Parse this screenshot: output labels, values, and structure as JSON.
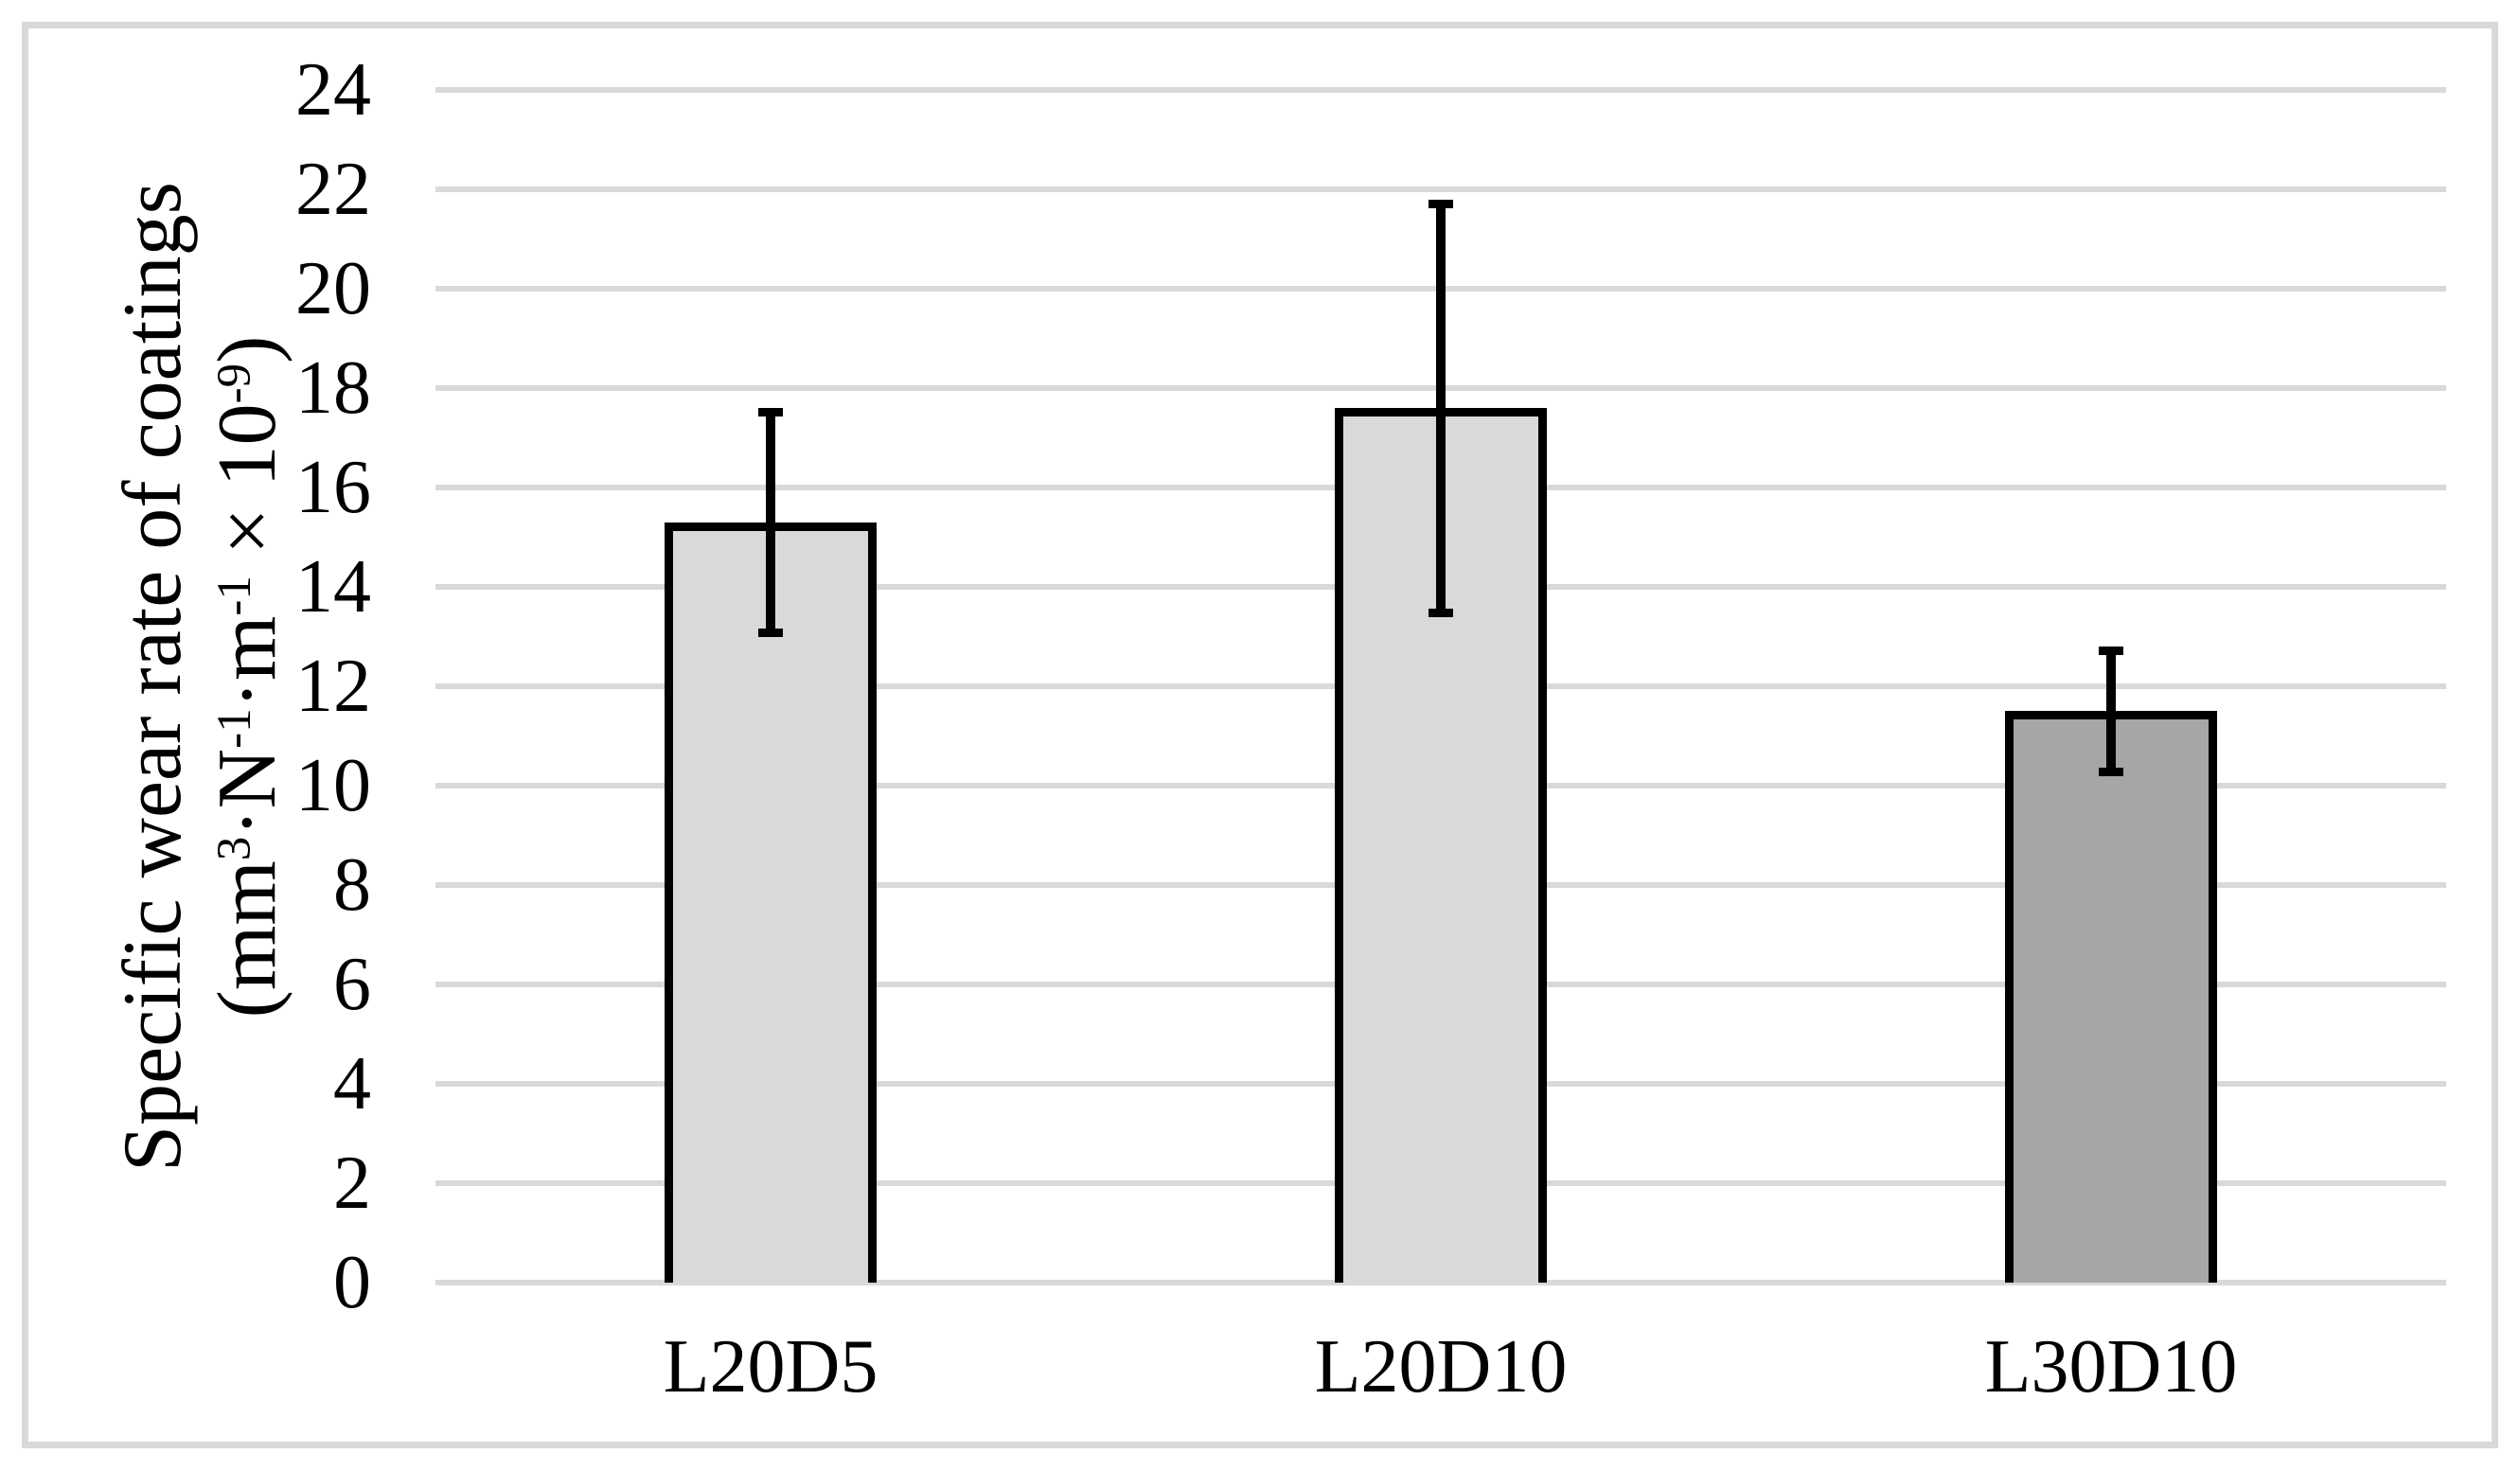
{
  "figure": {
    "background": "#ffffff",
    "border_color": "#d9d9d9"
  },
  "chart_data": {
    "type": "bar",
    "title": "",
    "xlabel": "",
    "ylabel_line1": "Specific wear rate of coatings",
    "ylabel_line2": "(mm³·N⁻¹·m⁻¹ × 10⁻⁹)",
    "ylabel_line2_parts": [
      {
        "text": "(mm"
      },
      {
        "text": "3",
        "sup": true
      },
      {
        "text": "·N"
      },
      {
        "text": "-1",
        "sup": true
      },
      {
        "text": "·m"
      },
      {
        "text": "-1",
        "sup": true
      },
      {
        "text": " × 10"
      },
      {
        "text": "-9",
        "sup": true
      },
      {
        "text": ")"
      }
    ],
    "categories": [
      "L20D5",
      "L20D10",
      "L30D10"
    ],
    "values": [
      15.3,
      17.6,
      11.5
    ],
    "error_bars": {
      "symmetric": true,
      "plus": [
        2.3,
        4.2,
        1.3
      ],
      "minus": [
        2.3,
        4.2,
        1.3
      ],
      "upper": [
        17.6,
        21.8,
        12.8
      ],
      "lower": [
        13.0,
        13.4,
        10.2
      ]
    },
    "bar_colors": [
      "#d9d9d9",
      "#d9d9d9",
      "#a6a6a6"
    ],
    "bar_border_color": "#000000",
    "error_bar_color": "#000000",
    "ylim": [
      0,
      24
    ],
    "yticks": [
      0,
      2,
      4,
      6,
      8,
      10,
      12,
      14,
      16,
      18,
      20,
      22,
      24
    ],
    "grid": "horizontal-only",
    "gridline_color": "#d9d9d9",
    "legend": "none"
  }
}
